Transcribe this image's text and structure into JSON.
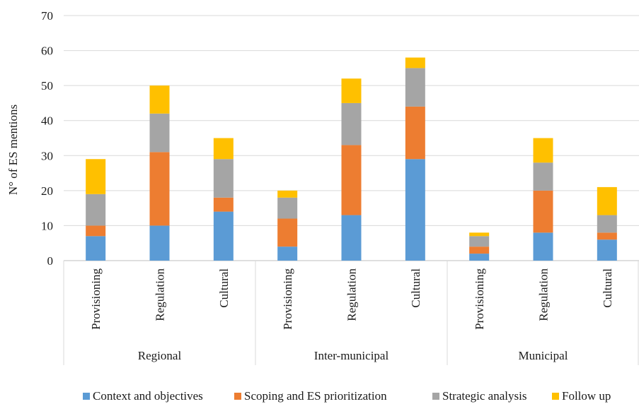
{
  "chart_data": {
    "type": "bar",
    "stacked": true,
    "title": "",
    "xlabel": "",
    "ylabel": "N° of ES mentions",
    "ylim": [
      0,
      70
    ],
    "yticks": [
      0,
      10,
      20,
      30,
      40,
      50,
      60,
      70
    ],
    "grid": true,
    "legend_position": "bottom",
    "groups": [
      {
        "label": "Regional",
        "categories": [
          "Provisioning",
          "Regulation",
          "Cultural"
        ]
      },
      {
        "label": "Inter-municipal",
        "categories": [
          "Provisioning",
          "Regulation",
          "Cultural"
        ]
      },
      {
        "label": "Municipal",
        "categories": [
          "Provisioning",
          "Regulation",
          "Cultural"
        ]
      }
    ],
    "series": [
      {
        "name": "Context and objectives",
        "color": "#5b9bd5",
        "values": [
          7,
          10,
          14,
          4,
          13,
          29,
          2,
          8,
          6
        ]
      },
      {
        "name": "Scoping and ES prioritization",
        "color": "#ed7d31",
        "values": [
          3,
          21,
          4,
          8,
          20,
          15,
          2,
          12,
          2
        ]
      },
      {
        "name": "Strategic analysis",
        "color": "#a5a5a5",
        "values": [
          9,
          11,
          11,
          6,
          12,
          11,
          3,
          8,
          5
        ]
      },
      {
        "name": "Follow up",
        "color": "#ffc000",
        "values": [
          10,
          8,
          6,
          2,
          7,
          3,
          1,
          7,
          8
        ]
      }
    ]
  }
}
